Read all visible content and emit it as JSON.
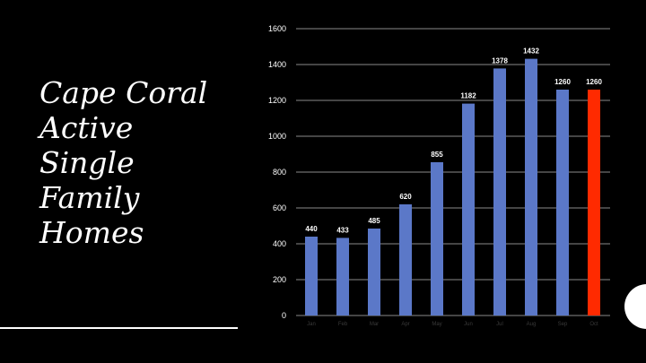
{
  "slide": {
    "title_lines": [
      "Cape Coral",
      "Active",
      "Single",
      "Family",
      "Homes"
    ]
  },
  "colors": {
    "background": "#000000",
    "bar": "#5b78c8",
    "bar_highlight": "#ff2a00",
    "gridline": "#8a8a8a",
    "text": "#ffffff"
  },
  "chart_data": {
    "type": "bar",
    "categories": [
      "Jan",
      "Feb",
      "Mar",
      "Apr",
      "May",
      "Jun",
      "Jul",
      "Aug",
      "Sep",
      "Oct"
    ],
    "values": [
      440,
      433,
      485,
      620,
      855,
      1182,
      1378,
      1432,
      1260,
      1260
    ],
    "highlight_index": 9,
    "ylim": [
      0,
      1600
    ],
    "yticks": [
      0,
      200,
      400,
      600,
      800,
      1000,
      1200,
      1400,
      1600
    ],
    "grid": true,
    "data_labels": true,
    "legend": "none"
  }
}
